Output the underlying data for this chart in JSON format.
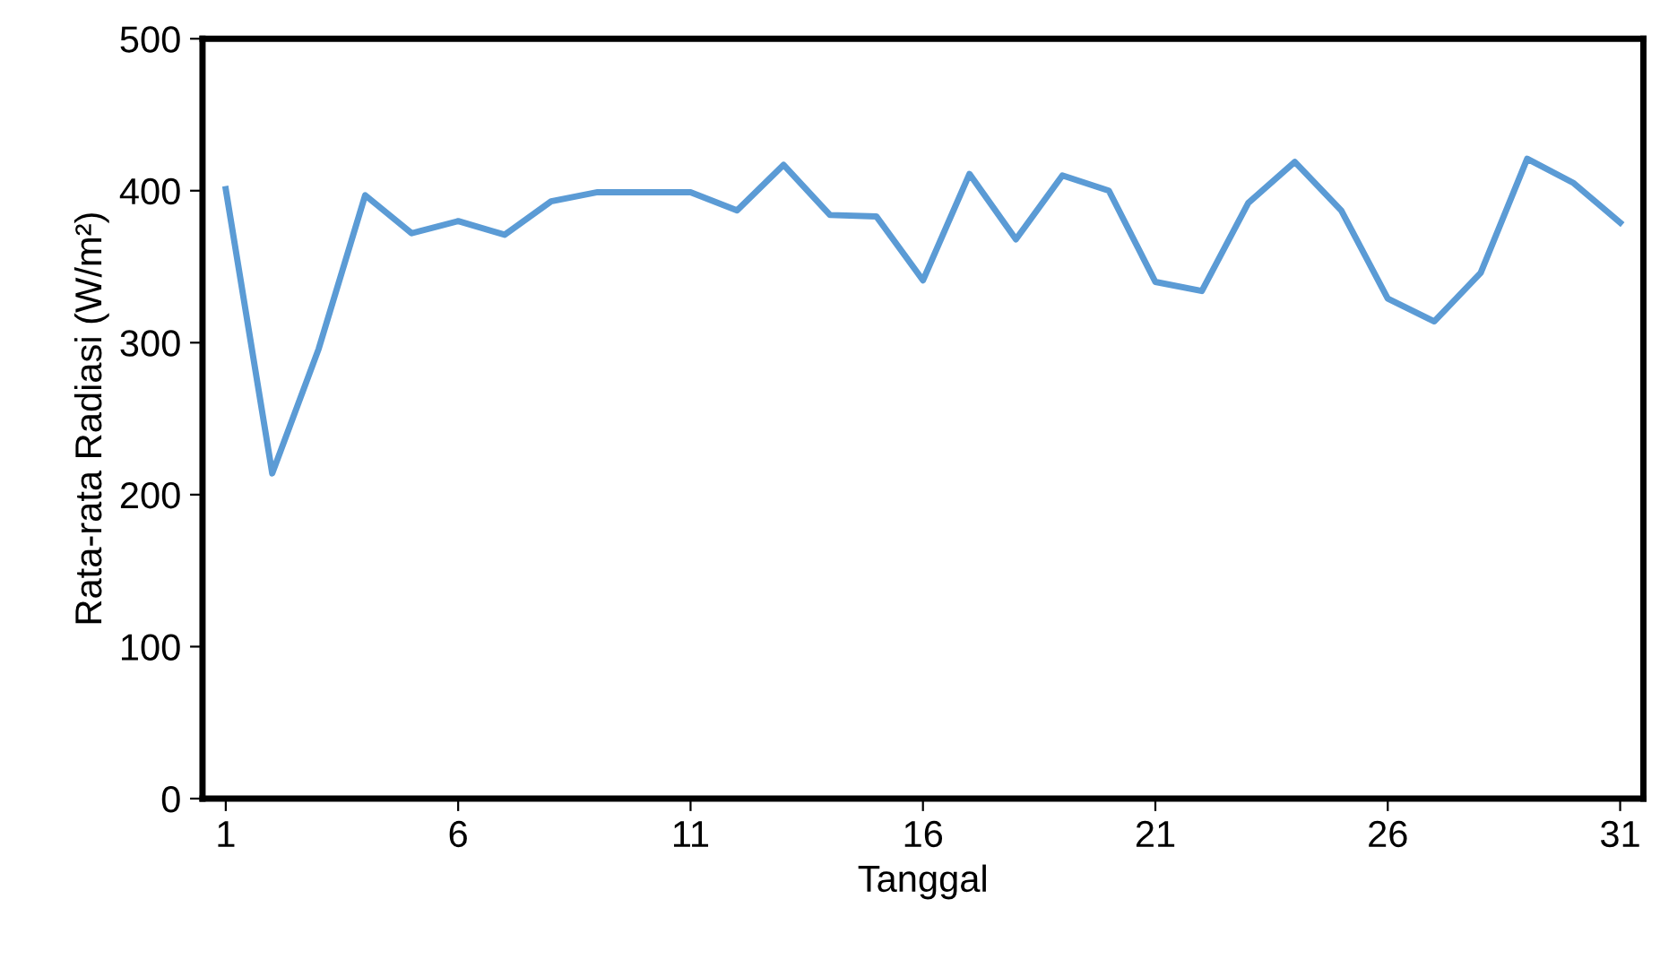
{
  "chart_data": {
    "type": "line",
    "xlabel": "Tanggal",
    "ylabel": "Rata-rata Radiasi (W/m²)",
    "x": [
      1,
      2,
      3,
      4,
      5,
      6,
      7,
      8,
      9,
      10,
      11,
      12,
      13,
      14,
      15,
      16,
      17,
      18,
      19,
      20,
      21,
      22,
      23,
      24,
      25,
      26,
      27,
      28,
      29,
      30,
      31
    ],
    "series": [
      {
        "color": "#5b9bd5",
        "values": [
          401,
          214,
          296,
          397,
          372,
          380,
          371,
          393,
          399,
          399,
          399,
          387,
          417,
          384,
          383,
          341,
          411,
          368,
          410,
          400,
          340,
          334,
          392,
          419,
          387,
          329,
          314,
          346,
          421,
          405,
          379
        ]
      }
    ],
    "xlim": [
      0.5,
      31.5
    ],
    "xticks": [
      1,
      6,
      11,
      16,
      21,
      26,
      31
    ],
    "ylim": [
      0,
      500
    ],
    "yticks": [
      0,
      100,
      200,
      300,
      400,
      500
    ],
    "grid": false,
    "legend": false,
    "marker": "none",
    "line_style": "solid"
  }
}
